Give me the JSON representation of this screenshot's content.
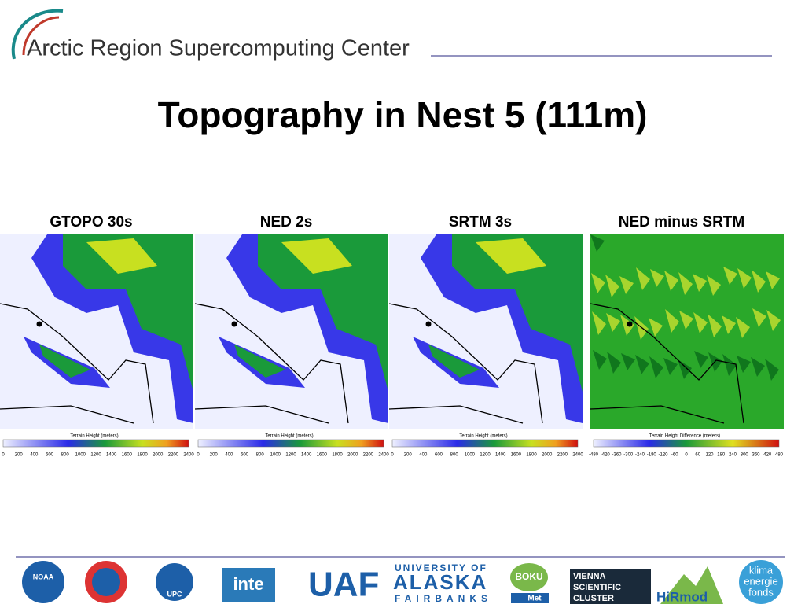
{
  "header": {
    "org": "Arctic Region Supercomputing Center"
  },
  "title": "Topography in Nest 5 (111m)",
  "panels": [
    {
      "title": "GTOPO 30s",
      "colorbar_label": "Terrain Height  (meters)",
      "ticks": [
        0,
        200,
        400,
        600,
        800,
        1000,
        1200,
        1400,
        1600,
        1800,
        2000,
        2200,
        2400
      ],
      "kind": "height"
    },
    {
      "title": "NED 2s",
      "colorbar_label": "Terrain Height  (meters)",
      "ticks": [
        0,
        200,
        400,
        600,
        800,
        1000,
        1200,
        1400,
        1600,
        1800,
        2000,
        2200,
        2400
      ],
      "kind": "height"
    },
    {
      "title": "SRTM 3s",
      "colorbar_label": "Terrain Height  (meters)",
      "ticks": [
        0,
        200,
        400,
        600,
        800,
        1000,
        1200,
        1400,
        1600,
        1800,
        2000,
        2200,
        2400
      ],
      "kind": "height"
    },
    {
      "title": "NED minus SRTM",
      "colorbar_label": "Terrain Height Difference  (meters)",
      "ticks": [
        -480,
        -420,
        -360,
        -300,
        -240,
        -180,
        -120,
        -60,
        0,
        60,
        120,
        180,
        240,
        300,
        360,
        420,
        480
      ],
      "kind": "difference"
    }
  ],
  "footer": {
    "logos": [
      "NOAA",
      "UPC",
      "inte",
      "UAF",
      "UNIVERSITY OF",
      "ALASKA",
      "FAIRBANKS",
      "BOKU",
      "Met",
      "VIENNA",
      "SCIENTIFIC",
      "CLUSTER",
      "HiRmod",
      "klima",
      "energie",
      "fonds"
    ]
  }
}
